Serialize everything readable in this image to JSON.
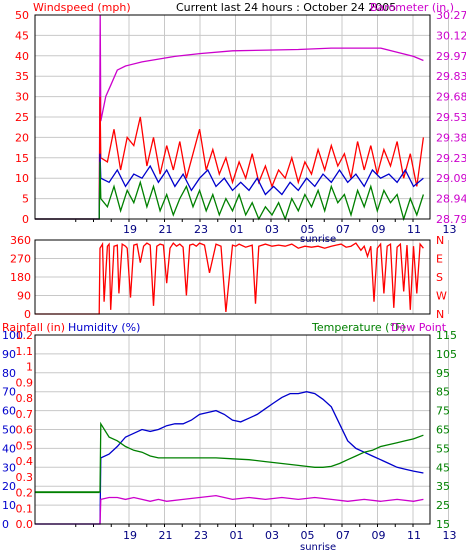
{
  "chart_data": [
    {
      "type": "line",
      "panel": "wind-barometer",
      "title": "Current last 24 hours : October 24 2005",
      "left_axis_label": "Windspeed (mph)",
      "right_axis_label": "Barometer (in.)",
      "left_ticks": [
        "0",
        "5",
        "10",
        "15",
        "20",
        "25",
        "30",
        "35",
        "40",
        "45",
        "50"
      ],
      "right_ticks": [
        "28.79",
        "28.94",
        "29.09",
        "29.23",
        "29.38",
        "29.53",
        "29.68",
        "29.83",
        "29.97",
        "30.12",
        "30.27"
      ],
      "x_ticks": [
        "19",
        "21",
        "23",
        "01",
        "03",
        "05",
        "07",
        "09",
        "11",
        "13"
      ],
      "x_marker": "sunrise",
      "left_ylim": [
        0,
        50
      ],
      "right_ylim": [
        28.79,
        30.27
      ],
      "x_domain_hours": [
        0,
        24
      ],
      "grid": true,
      "series": [
        {
          "axis": "right",
          "color": "#cc00cc",
          "x": [
            0,
            3.9,
            3.96,
            4.0,
            4.3,
            4.6,
            5.0,
            5.5,
            6.5,
            7.5,
            8.5,
            10.0,
            12.0,
            16.0,
            18.0,
            21.0,
            22.0,
            23.0,
            23.6
          ],
          "values": [
            0,
            0,
            30.27,
            29.5,
            29.68,
            29.76,
            29.87,
            29.9,
            29.93,
            29.95,
            29.97,
            29.99,
            30.01,
            30.02,
            30.03,
            30.03,
            30.0,
            29.97,
            29.94
          ]
        },
        {
          "axis": "left",
          "color": "#ff0000",
          "x": [
            0,
            3.9,
            3.95,
            4.0,
            4.4,
            4.8,
            5.2,
            5.6,
            6.0,
            6.4,
            6.8,
            7.2,
            7.6,
            8.0,
            8.4,
            8.8,
            9.2,
            9.6,
            10.0,
            10.4,
            10.8,
            11.2,
            11.6,
            12.0,
            12.4,
            12.8,
            13.2,
            13.6,
            14.0,
            14.4,
            14.8,
            15.2,
            15.6,
            16.0,
            16.4,
            16.8,
            17.2,
            17.6,
            18.0,
            18.4,
            18.8,
            19.2,
            19.6,
            20.0,
            20.4,
            20.8,
            21.2,
            21.6,
            22.0,
            22.4,
            22.8,
            23.2,
            23.6
          ],
          "values": [
            0,
            0,
            30,
            15,
            14,
            22,
            12,
            20,
            18,
            25,
            13,
            20,
            11,
            18,
            12,
            19,
            10,
            16,
            22,
            12,
            17,
            11,
            15,
            9,
            14,
            10,
            16,
            9,
            13,
            8,
            12,
            10,
            15,
            9,
            14,
            11,
            17,
            12,
            18,
            13,
            16,
            10,
            19,
            12,
            18,
            11,
            17,
            13,
            19,
            10,
            16,
            8,
            20
          ]
        },
        {
          "axis": "left",
          "color": "#0000cc",
          "x": [
            0,
            3.9,
            3.95,
            4.0,
            4.5,
            5.0,
            5.5,
            6.0,
            6.5,
            7.0,
            7.5,
            8.0,
            8.5,
            9.0,
            9.5,
            10.0,
            10.5,
            11.0,
            11.5,
            12.0,
            12.5,
            13.0,
            13.5,
            14.0,
            14.5,
            15.0,
            15.5,
            16.0,
            16.5,
            17.0,
            17.5,
            18.0,
            18.5,
            19.0,
            19.5,
            20.0,
            20.5,
            21.0,
            21.5,
            22.0,
            22.5,
            23.0,
            23.6
          ],
          "values": [
            0,
            0,
            16,
            10,
            9,
            12,
            8,
            11,
            10,
            13,
            9,
            12,
            8,
            11,
            7,
            10,
            12,
            8,
            10,
            7,
            9,
            7,
            10,
            6,
            8,
            6,
            9,
            7,
            10,
            8,
            11,
            9,
            12,
            9,
            11,
            8,
            12,
            10,
            11,
            9,
            12,
            8,
            10
          ]
        },
        {
          "axis": "left",
          "color": "#008000",
          "x": [
            0,
            3.9,
            3.95,
            4.0,
            4.4,
            4.8,
            5.2,
            5.6,
            6.0,
            6.4,
            6.8,
            7.2,
            7.6,
            8.0,
            8.4,
            8.8,
            9.2,
            9.6,
            10.0,
            10.4,
            10.8,
            11.2,
            11.6,
            12.0,
            12.4,
            12.8,
            13.2,
            13.6,
            14.0,
            14.4,
            14.8,
            15.2,
            15.6,
            16.0,
            16.4,
            16.8,
            17.2,
            17.6,
            18.0,
            18.4,
            18.8,
            19.2,
            19.6,
            20.0,
            20.4,
            20.8,
            21.2,
            21.6,
            22.0,
            22.4,
            22.8,
            23.2,
            23.6
          ],
          "values": [
            0,
            0,
            14,
            5,
            3,
            8,
            2,
            7,
            4,
            9,
            3,
            8,
            2,
            6,
            1,
            5,
            8,
            3,
            7,
            2,
            6,
            1,
            5,
            2,
            6,
            1,
            4,
            0,
            3,
            1,
            4,
            0,
            5,
            2,
            6,
            3,
            7,
            2,
            8,
            4,
            6,
            1,
            7,
            3,
            8,
            2,
            7,
            4,
            6,
            0,
            5,
            1,
            6
          ]
        }
      ]
    },
    {
      "type": "line",
      "panel": "wind-direction",
      "left_ticks": [
        "0",
        "90",
        "180",
        "270",
        "360"
      ],
      "right_ticks": [
        "N",
        "E",
        "S",
        "W",
        "N"
      ],
      "left_ylim": [
        0,
        360
      ],
      "grid": true,
      "series": [
        {
          "color": "#ff0000",
          "x": [
            0,
            3.9,
            3.95,
            4.1,
            4.2,
            4.4,
            4.5,
            4.6,
            4.8,
            5.0,
            5.1,
            5.3,
            5.5,
            5.6,
            5.8,
            6.0,
            6.2,
            6.4,
            6.6,
            6.8,
            7.0,
            7.2,
            7.4,
            7.6,
            7.8,
            8.0,
            8.2,
            8.4,
            8.6,
            8.8,
            9.0,
            9.2,
            9.4,
            9.6,
            9.8,
            10.0,
            10.3,
            10.6,
            11.0,
            11.3,
            11.6,
            12.0,
            12.2,
            12.4,
            12.8,
            13.2,
            13.4,
            13.6,
            14.0,
            14.4,
            14.8,
            15.2,
            15.6,
            16.0,
            16.4,
            16.8,
            17.2,
            17.6,
            18.0,
            18.3,
            18.6,
            18.9,
            19.2,
            19.5,
            19.8,
            20.0,
            20.2,
            20.4,
            20.6,
            20.8,
            21.0,
            21.2,
            21.4,
            21.6,
            21.8,
            22.0,
            22.2,
            22.4,
            22.6,
            22.8,
            23.0,
            23.2,
            23.4,
            23.6
          ],
          "values": [
            0,
            0,
            320,
            340,
            60,
            330,
            340,
            20,
            330,
            335,
            100,
            340,
            330,
            320,
            80,
            335,
            340,
            250,
            330,
            345,
            335,
            40,
            330,
            340,
            335,
            150,
            320,
            345,
            330,
            340,
            325,
            90,
            335,
            340,
            330,
            345,
            335,
            200,
            340,
            330,
            10,
            335,
            330,
            340,
            325,
            335,
            50,
            330,
            340,
            330,
            335,
            330,
            340,
            320,
            330,
            325,
            330,
            320,
            330,
            335,
            340,
            325,
            330,
            345,
            310,
            330,
            280,
            330,
            60,
            320,
            340,
            100,
            330,
            340,
            30,
            325,
            340,
            110,
            335,
            20,
            330,
            100,
            340,
            320
          ]
        }
      ]
    },
    {
      "type": "line",
      "panel": "rain-humidity-temperature",
      "left_axis_label_rain": "Rainfall (in)",
      "left_axis_label_humidity": "Humidity (%)",
      "right_axis_label": "Temperature (°F)",
      "right_axis_label_2": "Dew Point",
      "humidity_ticks": [
        "0",
        "10",
        "20",
        "30",
        "40",
        "50",
        "60",
        "70",
        "80",
        "90",
        "100"
      ],
      "rain_ticks": [
        "0.0",
        "0.1",
        "0.2",
        "0.3",
        "0.4",
        "0.5",
        "0.6",
        "0.7",
        "0.8",
        "0.9",
        "1",
        "1.1",
        "1.2"
      ],
      "right_ticks": [
        "15",
        "25",
        "35",
        "45",
        "55",
        "65",
        "75",
        "85",
        "95",
        "105",
        "115"
      ],
      "x_ticks": [
        "19",
        "21",
        "23",
        "01",
        "03",
        "05",
        "07",
        "09",
        "11",
        "13"
      ],
      "x_marker": "sunrise",
      "humidity_ylim": [
        0,
        100
      ],
      "rain_ylim": [
        0,
        1.2
      ],
      "temp_ylim": [
        15,
        115
      ],
      "grid": true,
      "series": [
        {
          "axis": "humidity",
          "color": "#0000cc",
          "x": [
            0,
            3.9,
            3.95,
            4.0,
            4.5,
            5.0,
            5.5,
            6.0,
            6.5,
            7.0,
            7.5,
            8.0,
            8.5,
            9.0,
            9.5,
            10.0,
            10.5,
            11.0,
            11.5,
            12.0,
            12.5,
            13.0,
            13.5,
            14.0,
            14.5,
            15.0,
            15.5,
            16.0,
            16.5,
            17.0,
            17.5,
            18.0,
            18.5,
            19.0,
            19.5,
            20.0,
            20.5,
            21.0,
            21.5,
            22.0,
            22.5,
            23.0,
            23.6
          ],
          "values": [
            0,
            0,
            0,
            35,
            37,
            41,
            46,
            48,
            50,
            49,
            50,
            52,
            53,
            53,
            55,
            58,
            59,
            60,
            58,
            55,
            54,
            56,
            58,
            61,
            64,
            67,
            69,
            69,
            70,
            69,
            66,
            62,
            53,
            44,
            40,
            38,
            36,
            34,
            32,
            30,
            29,
            28,
            27
          ]
        },
        {
          "axis": "temp",
          "color": "#008000",
          "x": [
            0,
            3.9,
            3.95,
            4.0,
            4.5,
            5.0,
            5.5,
            6.0,
            6.5,
            7.0,
            7.5,
            8.0,
            9.0,
            10.0,
            11.0,
            12.0,
            13.0,
            14.0,
            15.0,
            16.0,
            16.5,
            17.0,
            17.5,
            18.0,
            18.5,
            19.0,
            19.5,
            20.0,
            20.5,
            21.0,
            21.5,
            22.0,
            22.5,
            23.0,
            23.6
          ],
          "values": [
            32,
            32,
            32,
            68,
            61,
            59,
            56,
            54,
            53,
            51,
            50,
            50,
            50,
            50,
            50,
            49.5,
            49,
            48,
            47,
            46,
            45.5,
            45,
            45,
            45.5,
            47,
            49,
            51,
            53,
            54,
            56,
            57,
            58,
            59,
            60,
            62
          ]
        },
        {
          "axis": "temp",
          "color": "#cc00cc",
          "x": [
            0,
            3.9,
            3.95,
            4.0,
            4.5,
            5.0,
            5.5,
            6.0,
            6.5,
            7.0,
            7.5,
            8.0,
            9.0,
            10.0,
            11.0,
            12.0,
            13.0,
            14.0,
            15.0,
            16.0,
            17.0,
            18.0,
            19.0,
            20.0,
            21.0,
            22.0,
            23.0,
            23.6
          ],
          "values": [
            15,
            15,
            15,
            28,
            29,
            29,
            28,
            29,
            28,
            27,
            28,
            27,
            28,
            29,
            30,
            28,
            29,
            28,
            29,
            28,
            29,
            28,
            27,
            28,
            27,
            28,
            27,
            28
          ]
        },
        {
          "axis": "rain",
          "color": "#008000",
          "x": [
            0,
            3.92
          ],
          "values": [
            0.2,
            0.2
          ]
        }
      ]
    }
  ]
}
